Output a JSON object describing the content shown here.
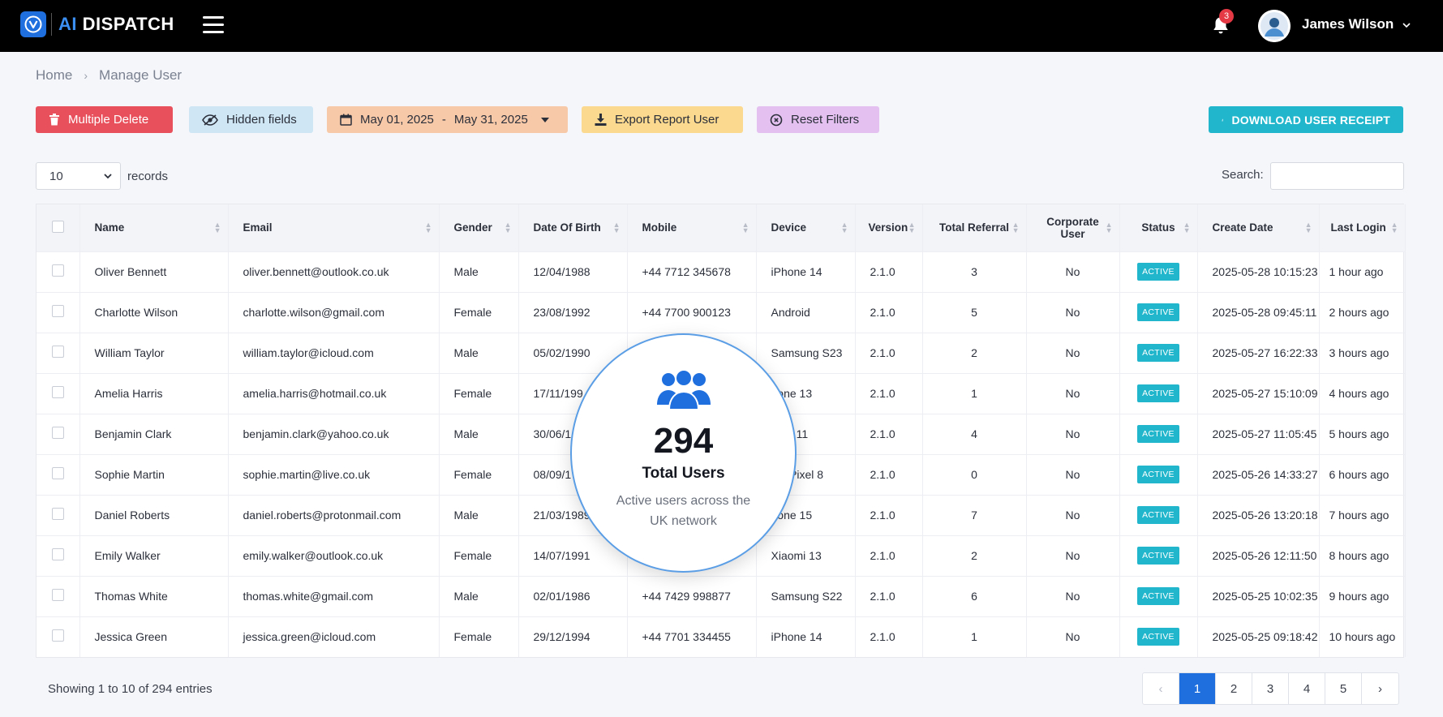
{
  "app": {
    "logo_ai": "AI",
    "logo_name": "DISPATCH"
  },
  "notifications": {
    "count": "3"
  },
  "user": {
    "name": "James Wilson"
  },
  "breadcrumb": {
    "home": "Home",
    "current": "Manage User"
  },
  "toolbar": {
    "multiple_delete": "Multiple Delete",
    "hidden_fields": "Hidden fields",
    "date_start": "May 01, 2025",
    "date_sep": "-",
    "date_end": "May 31, 2025",
    "export": "Export Report User",
    "reset": "Reset Filters",
    "download": "DOWNLOAD USER RECEIPT"
  },
  "records": {
    "value": "10",
    "label": "records"
  },
  "search": {
    "label": "Search:",
    "placeholder": ""
  },
  "table": {
    "columns": [
      "Name",
      "Email",
      "Gender",
      "Date Of Birth",
      "Mobile",
      "Device",
      "Version",
      "Total Referral",
      "Corporate User",
      "Status",
      "Create Date",
      "Last Login"
    ],
    "rows": [
      [
        "Oliver Bennett",
        "oliver.bennett@outlook.co.uk",
        "Male",
        "12/04/1988",
        "+44 7712 345678",
        "iPhone 14",
        "2.1.0",
        "3",
        "No",
        "ACTIVE",
        "2025-05-28 10:15:23",
        "1 hour ago"
      ],
      [
        "Charlotte Wilson",
        "charlotte.wilson@gmail.com",
        "Female",
        "23/08/1992",
        "+44 7700 900123",
        "Android",
        "2.1.0",
        "5",
        "No",
        "ACTIVE",
        "2025-05-28 09:45:11",
        "2 hours ago"
      ],
      [
        "William Taylor",
        "william.taylor@icloud.com",
        "Male",
        "05/02/1990",
        "",
        "Samsung S23",
        "2.1.0",
        "2",
        "No",
        "ACTIVE",
        "2025-05-27 16:22:33",
        "3 hours ago"
      ],
      [
        "Amelia Harris",
        "amelia.harris@hotmail.co.uk",
        "Female",
        "17/11/199",
        "",
        "hone 13",
        "2.1.0",
        "1",
        "No",
        "ACTIVE",
        "2025-05-27 15:10:09",
        "4 hours ago"
      ],
      [
        "Benjamin Clark",
        "benjamin.clark@yahoo.co.uk",
        "Male",
        "30/06/1",
        "",
        "Plus 11",
        "2.1.0",
        "4",
        "No",
        "ACTIVE",
        "2025-05-27 11:05:45",
        "5 hours ago"
      ],
      [
        "Sophie Martin",
        "sophie.martin@live.co.uk",
        "Female",
        "08/09/1",
        "",
        "gle Pixel 8",
        "2.1.0",
        "0",
        "No",
        "ACTIVE",
        "2025-05-26 14:33:27",
        "6 hours ago"
      ],
      [
        "Daniel Roberts",
        "daniel.roberts@protonmail.com",
        "Male",
        "21/03/1989",
        "",
        "hone 15",
        "2.1.0",
        "7",
        "No",
        "ACTIVE",
        "2025-05-26 13:20:18",
        "7 hours ago"
      ],
      [
        "Emily Walker",
        "emily.walker@outlook.co.uk",
        "Female",
        "14/07/1991",
        "",
        "Xiaomi 13",
        "2.1.0",
        "2",
        "No",
        "ACTIVE",
        "2025-05-26 12:11:50",
        "8 hours ago"
      ],
      [
        "Thomas White",
        "thomas.white@gmail.com",
        "Male",
        "02/01/1986",
        "+44 7429 998877",
        "Samsung S22",
        "2.1.0",
        "6",
        "No",
        "ACTIVE",
        "2025-05-25 10:02:35",
        "9 hours ago"
      ],
      [
        "Jessica Green",
        "jessica.green@icloud.com",
        "Female",
        "29/12/1994",
        "+44 7701 334455",
        "iPhone 14",
        "2.1.0",
        "1",
        "No",
        "ACTIVE",
        "2025-05-25 09:18:42",
        "10 hours ago"
      ]
    ]
  },
  "footer": {
    "showing": "Showing 1 to 10 of 294 entries"
  },
  "pagination": {
    "pages": [
      "1",
      "2",
      "3",
      "4",
      "5"
    ],
    "active": "1",
    "prev": "‹",
    "next": "›"
  },
  "overlay": {
    "number": "294",
    "title": "Total Users",
    "subtitle": "Active users across the UK network"
  },
  "colors": {
    "topbar": "#000000",
    "accent": "#1f6fde",
    "status": "#22b6cc",
    "delete": "#e8505b"
  }
}
